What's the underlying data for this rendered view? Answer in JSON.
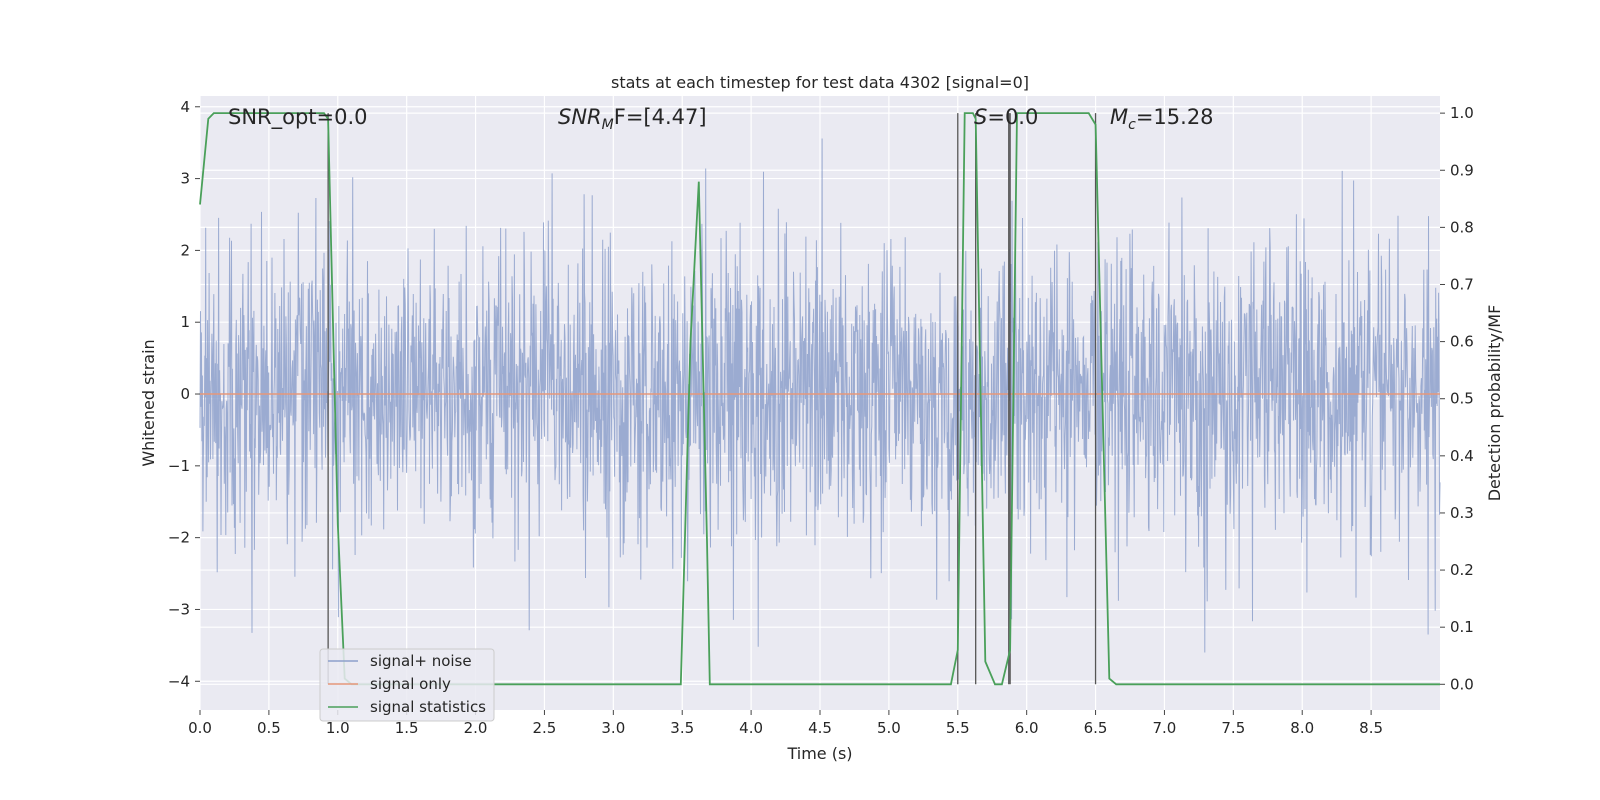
{
  "chart_data": {
    "type": "line",
    "title": "stats at each timestep for test data 4302 [signal=0]",
    "xlabel": "Time (s)",
    "ylabel_left": "Whitened strain",
    "ylabel_right": "Detection probability/MF",
    "xlim": [
      0.0,
      9.0
    ],
    "ylim_left": [
      -4.4,
      4.15
    ],
    "ylim_right": [
      -0.045,
      1.03
    ],
    "x_ticks": [
      "0.0",
      "0.5",
      "1.0",
      "1.5",
      "2.0",
      "2.5",
      "3.0",
      "3.5",
      "4.0",
      "4.5",
      "5.0",
      "5.5",
      "6.0",
      "6.5",
      "7.0",
      "7.5",
      "8.0",
      "8.5"
    ],
    "y_ticks_left": [
      "4",
      "3",
      "2",
      "1",
      "0",
      "−1",
      "−2",
      "−3",
      "−4"
    ],
    "y_ticks_right": [
      "1.0",
      "0.9",
      "0.8",
      "0.7",
      "0.6",
      "0.5",
      "0.4",
      "0.3",
      "0.2",
      "0.1",
      "0.0"
    ],
    "grid": true,
    "legend_position": "lower-left",
    "annotations": {
      "snr_opt": "SNR_opt=0.0",
      "snr_mf_var": "SNR",
      "snr_mf_sub": "M",
      "snr_mf_rest": "F=[4.47]",
      "s": "=0.0",
      "s_var": "S",
      "mc_var": "M",
      "mc_sub": "c",
      "mc_rest": "=15.28"
    },
    "series": [
      {
        "name": "signal+ noise",
        "axis": "left",
        "color": "#8da0cb",
        "description_values": "whitened noisy strain, roughly between -3.6 and 3.7"
      },
      {
        "name": "signal only",
        "axis": "left",
        "color": "#e5977a",
        "x": [
          0.0,
          9.0
        ],
        "y": [
          0.0,
          0.0
        ]
      },
      {
        "name": "signal statistics",
        "axis": "right",
        "color": "#4aa05a",
        "x": [
          0.0,
          0.06,
          0.1,
          0.5,
          0.9,
          0.93,
          1.0,
          1.05,
          1.1,
          1.5,
          2.0,
          2.5,
          3.0,
          3.49,
          3.56,
          3.62,
          3.68,
          3.7,
          3.75,
          4.0,
          4.5,
          5.0,
          5.45,
          5.5,
          5.55,
          5.58,
          5.61,
          5.63,
          5.7,
          5.77,
          5.82,
          5.88,
          5.93,
          6.0,
          6.45,
          6.5,
          6.6,
          6.65,
          7.0,
          7.5,
          8.0,
          8.5,
          9.0
        ],
        "y": [
          0.84,
          0.99,
          1.0,
          1.0,
          1.0,
          0.99,
          0.28,
          0.01,
          0.0,
          0.0,
          0.0,
          0.0,
          0.0,
          0.0,
          0.6,
          0.88,
          0.25,
          0.0,
          0.0,
          0.0,
          0.0,
          0.0,
          0.0,
          0.06,
          1.0,
          1.0,
          1.0,
          0.99,
          0.04,
          0.0,
          0.0,
          0.06,
          1.0,
          1.0,
          1.0,
          0.98,
          0.01,
          0.0,
          0.0,
          0.0,
          0.0,
          0.0,
          0.0
        ]
      }
    ],
    "vlines_x": [
      0.93,
      5.5,
      5.63,
      5.87,
      5.88,
      6.5
    ]
  }
}
